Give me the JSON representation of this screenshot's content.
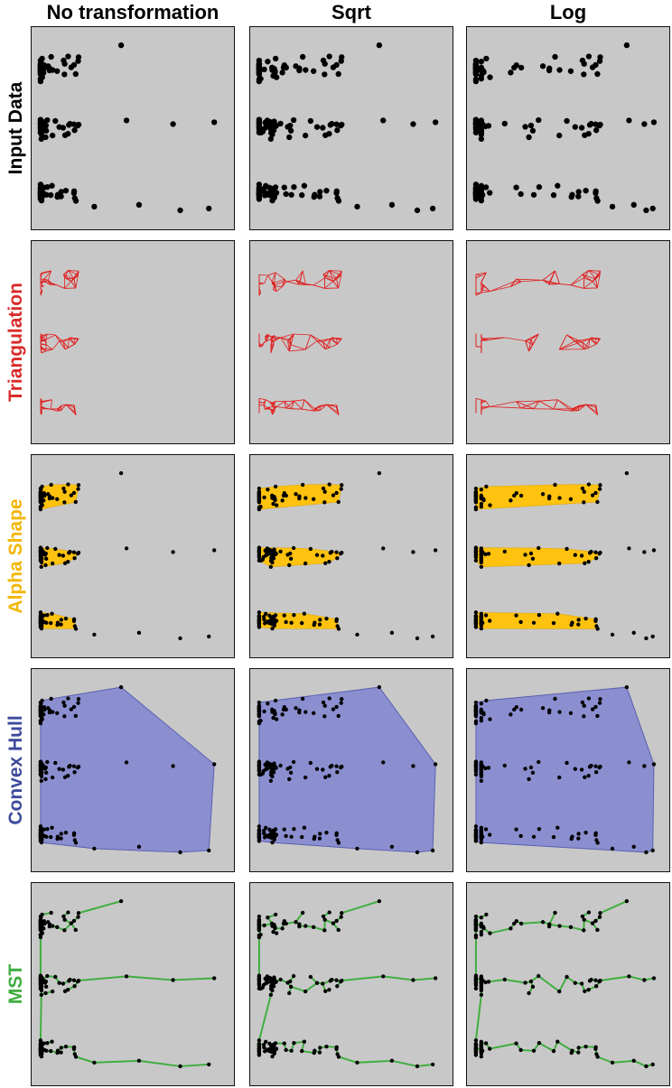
{
  "columns": [
    {
      "key": "none",
      "title": "No transformation"
    },
    {
      "key": "sqrt",
      "title": "Sqrt"
    },
    {
      "key": "log",
      "title": "Log"
    }
  ],
  "rows": [
    {
      "key": "input",
      "label": "Input Data",
      "color": "#000000"
    },
    {
      "key": "triangulation",
      "label": "Triangulation",
      "color": "#d92b2b"
    },
    {
      "key": "alpha",
      "label": "Alpha Shape",
      "color": "#f2b705"
    },
    {
      "key": "hull",
      "label": "Convex Hull",
      "color": "#3d4a9c"
    },
    {
      "key": "mst",
      "label": "MST",
      "color": "#3fae3f"
    }
  ],
  "styles": {
    "panel_bg": "#c8c8c8",
    "point_color": "#000000",
    "triangulation_stroke": "#e02020",
    "alpha_fill": "#ffc20e",
    "hull_fill": "#8b8fd0",
    "hull_stroke": "#5a5fb0",
    "mst_stroke": "#3fae3f"
  }
}
